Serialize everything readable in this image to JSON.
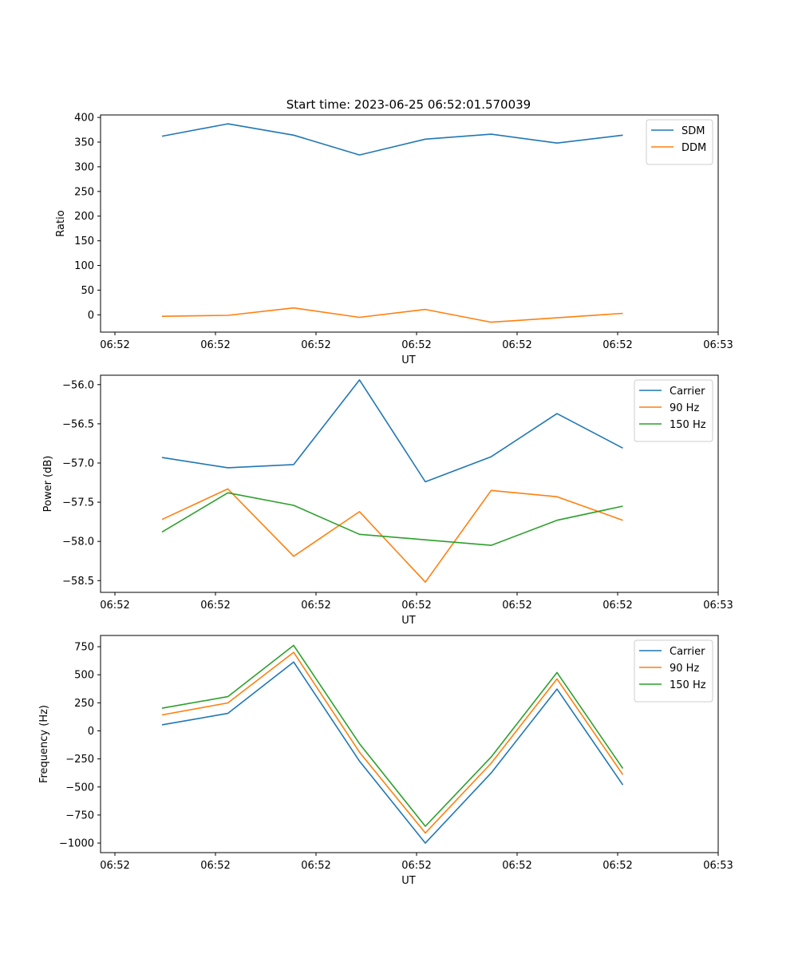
{
  "title": "Start time: 2023-06-25 06:52:01.570039",
  "chart_data": [
    {
      "type": "line",
      "xlabel": "UT",
      "ylabel": "Ratio",
      "x_tick_labels": [
        "06:52",
        "06:52",
        "06:52",
        "06:52",
        "06:52",
        "06:52",
        "06:53"
      ],
      "y_ticks": [
        0,
        50,
        100,
        150,
        200,
        250,
        300,
        350,
        400
      ],
      "ylim": [
        -35,
        405
      ],
      "legend_position": "upper right",
      "grid": false,
      "series": [
        {
          "name": "SDM",
          "color": "#1f77b4",
          "values": [
            362,
            387,
            364,
            324,
            356,
            366,
            348,
            364
          ]
        },
        {
          "name": "DDM",
          "color": "#ff7f0e",
          "values": [
            -3,
            -1,
            14,
            -5,
            11,
            -15,
            -6,
            3
          ]
        }
      ]
    },
    {
      "type": "line",
      "xlabel": "UT",
      "ylabel": "Power (dB)",
      "x_tick_labels": [
        "06:52",
        "06:52",
        "06:52",
        "06:52",
        "06:52",
        "06:52",
        "06:53"
      ],
      "y_ticks": [
        -58.5,
        -58.0,
        -57.5,
        -57.0,
        -56.5,
        -56.0
      ],
      "y_tick_labels": [
        "−58.5",
        "−58.0",
        "−57.5",
        "−57.0",
        "−56.5",
        "−56.0"
      ],
      "ylim": [
        -58.65,
        -55.88
      ],
      "legend_position": "upper right",
      "grid": false,
      "series": [
        {
          "name": "Carrier",
          "color": "#1f77b4",
          "values": [
            -56.93,
            -57.06,
            -57.02,
            -55.94,
            -57.24,
            -56.92,
            -56.37,
            -56.81
          ]
        },
        {
          "name": "90 Hz",
          "color": "#ff7f0e",
          "values": [
            -57.72,
            -57.33,
            -58.19,
            -57.62,
            -58.52,
            -57.35,
            -57.43,
            -57.73
          ]
        },
        {
          "name": "150 Hz",
          "color": "#2ca02c",
          "values": [
            -57.88,
            -57.38,
            -57.54,
            -57.91,
            -57.98,
            -58.05,
            -57.73,
            -57.55
          ]
        }
      ]
    },
    {
      "type": "line",
      "xlabel": "UT",
      "ylabel": "Frequency (Hz)",
      "x_tick_labels": [
        "06:52",
        "06:52",
        "06:52",
        "06:52",
        "06:52",
        "06:52",
        "06:53"
      ],
      "y_ticks": [
        -1000,
        -750,
        -500,
        -250,
        0,
        250,
        500,
        750
      ],
      "y_tick_labels": [
        "−1000",
        "−750",
        "−500",
        "−250",
        "0",
        "250",
        "500",
        "750"
      ],
      "ylim": [
        -1085,
        850
      ],
      "legend_position": "upper right",
      "grid": false,
      "series": [
        {
          "name": "Carrier",
          "color": "#1f77b4",
          "values": [
            54,
            156,
            614,
            -270,
            -1000,
            -375,
            373,
            -482
          ]
        },
        {
          "name": "90 Hz",
          "color": "#ff7f0e",
          "values": [
            142,
            249,
            700,
            -190,
            -910,
            -288,
            463,
            -390
          ]
        },
        {
          "name": "150 Hz",
          "color": "#2ca02c",
          "values": [
            202,
            305,
            762,
            -115,
            -850,
            -233,
            520,
            -335
          ]
        }
      ]
    }
  ]
}
